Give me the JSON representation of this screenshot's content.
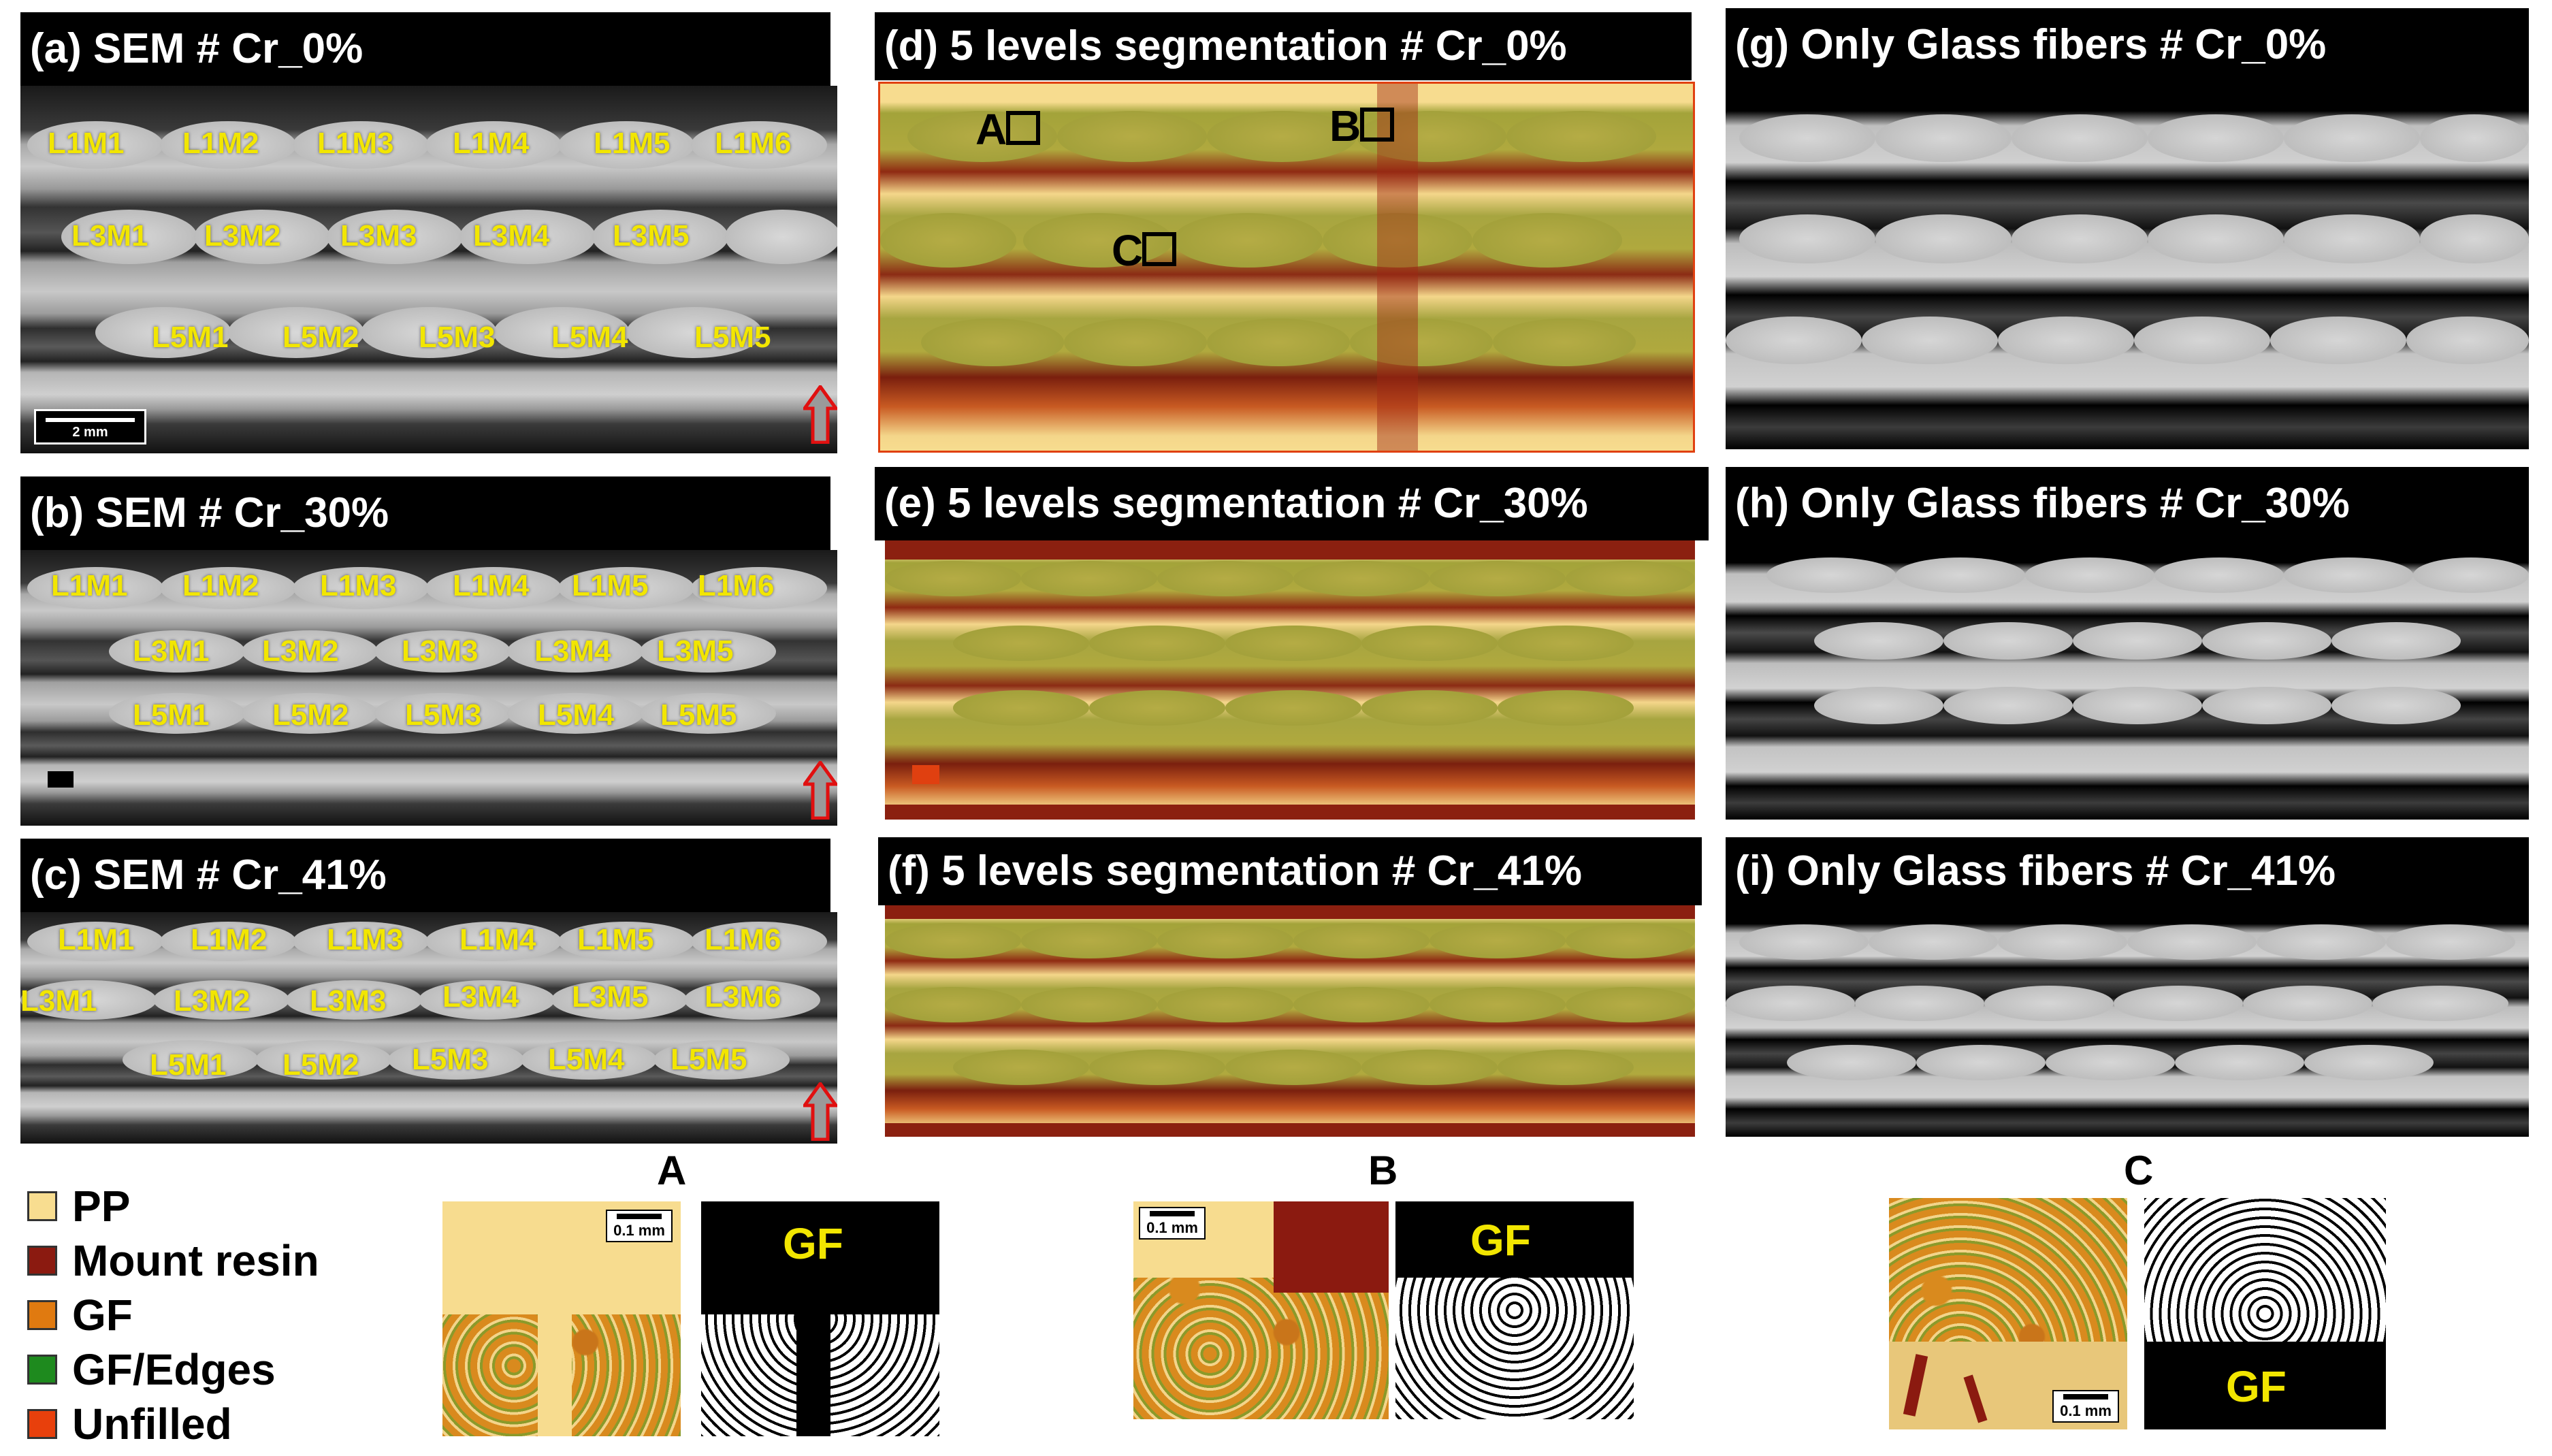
{
  "titles": {
    "a": "(a) SEM # Cr_0%",
    "b": "(b) SEM # Cr_30%",
    "c": "(c) SEM # Cr_41%",
    "d": "(d) 5 levels segmentation # Cr_0%",
    "e": "(e) 5 levels segmentation # Cr_30%",
    "f": "(f) 5 levels segmentation # Cr_41%",
    "g": "(g) Only Glass fibers # Cr_0%",
    "h": "(h) Only Glass fibers # Cr_30%",
    "i": "(i) Only Glass fibers # Cr_41%"
  },
  "sem_labels": {
    "a": {
      "row1": [
        "L1M1",
        "L1M2",
        "L1M3",
        "L1M4",
        "L1M5",
        "L1M6"
      ],
      "row2": [
        "L3M1",
        "L3M2",
        "L3M3",
        "L3M4",
        "L3M5"
      ],
      "row3": [
        "L5M1",
        "L5M2",
        "L5M3",
        "L5M4",
        "L5M5"
      ]
    },
    "b": {
      "row1": [
        "L1M1",
        "L1M2",
        "L1M3",
        "L1M4",
        "L1M5",
        "L1M6"
      ],
      "row2": [
        "L3M1",
        "L3M2",
        "L3M3",
        "L3M4",
        "L3M5"
      ],
      "row3": [
        "L5M1",
        "L5M2",
        "L5M3",
        "L5M4",
        "L5M5"
      ]
    },
    "c": {
      "row1": [
        "L1M1",
        "L1M2",
        "L1M3",
        "L1M4",
        "L1M5",
        "L1M6"
      ],
      "row2": [
        "L3M1",
        "L3M2",
        "L3M3",
        "L3M4",
        "L3M5",
        "L3M6"
      ],
      "row3": [
        "L5M1",
        "L5M2",
        "L5M3",
        "L5M4",
        "L5M5"
      ]
    }
  },
  "scale_bar_a": "2 mm",
  "roi_boxes": [
    "A",
    "B",
    "C"
  ],
  "legend": [
    {
      "label": "PP",
      "color": "#f8dd90"
    },
    {
      "label": "Mount resin",
      "color": "#8b1a10"
    },
    {
      "label": "GF",
      "color": "#e07a10"
    },
    {
      "label": "GF/Edges",
      "color": "#1e8a1e"
    },
    {
      "label": "Unfilled",
      "color": "#e8400c"
    }
  ],
  "zooms": {
    "A": {
      "title": "A",
      "scale": "0.1 mm",
      "gf": "GF"
    },
    "B": {
      "title": "B",
      "scale": "0.1 mm",
      "gf": "GF"
    },
    "C": {
      "title": "C",
      "scale": "0.1 mm",
      "gf": "GF"
    }
  },
  "colors": {
    "label_yellow": "#f2e600",
    "arrow_red": "#e01010",
    "arrow_fill": "#9a9a9a"
  }
}
